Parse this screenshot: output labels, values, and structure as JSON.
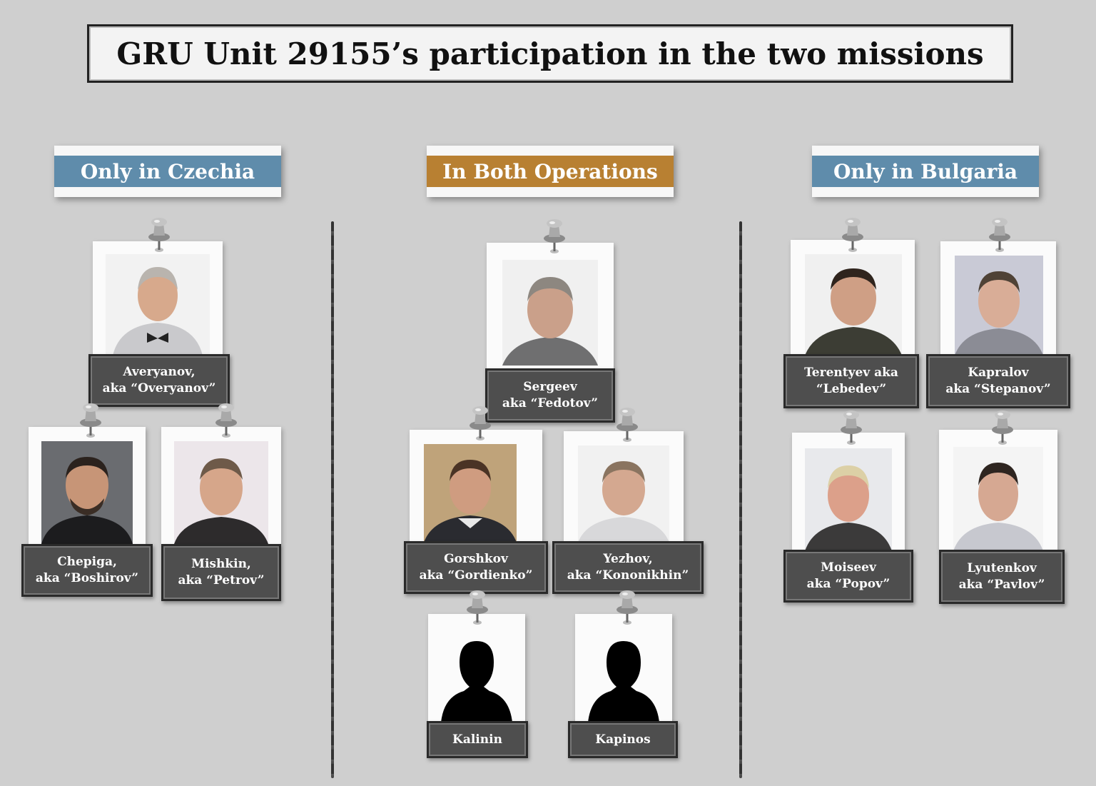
{
  "title": "GRU Unit 29155’s participation in the two missions",
  "colors": {
    "czechia": "#5f8cab",
    "both": "#b88032",
    "bulgaria": "#5f8cab"
  },
  "columns": [
    {
      "label": "Only in Czechia"
    },
    {
      "label": "In Both Operations"
    },
    {
      "label": "Only in Bulgaria"
    }
  ],
  "people": {
    "averyanov": {
      "line1": "Averyanov,",
      "line2": "aka “Overyanov”"
    },
    "chepiga": {
      "line1": "Chepiga,",
      "line2": "aka “Boshirov”"
    },
    "mishkin": {
      "line1": "Mishkin,",
      "line2": "aka “Petrov”"
    },
    "sergeev": {
      "line1": "Sergeev",
      "line2": "aka “Fedotov”"
    },
    "gorshkov": {
      "line1": "Gorshkov",
      "line2": "aka “Gordienko”"
    },
    "yezhov": {
      "line1": "Yezhov,",
      "line2": "aka “Kononikhin”"
    },
    "kalinin": {
      "line1": "Kalinin"
    },
    "kapinos": {
      "line1": "Kapinos"
    },
    "terentyev": {
      "line1": "Terentyev aka",
      "line2": "“Lebedev”"
    },
    "kapralov": {
      "line1": "Kapralov",
      "line2": "aka “Stepanov”"
    },
    "moiseev": {
      "line1": "Moiseev",
      "line2": "aka “Popov”"
    },
    "lyutenkov": {
      "line1": "Lyutenkov",
      "line2": "aka “Pavlov”"
    }
  }
}
